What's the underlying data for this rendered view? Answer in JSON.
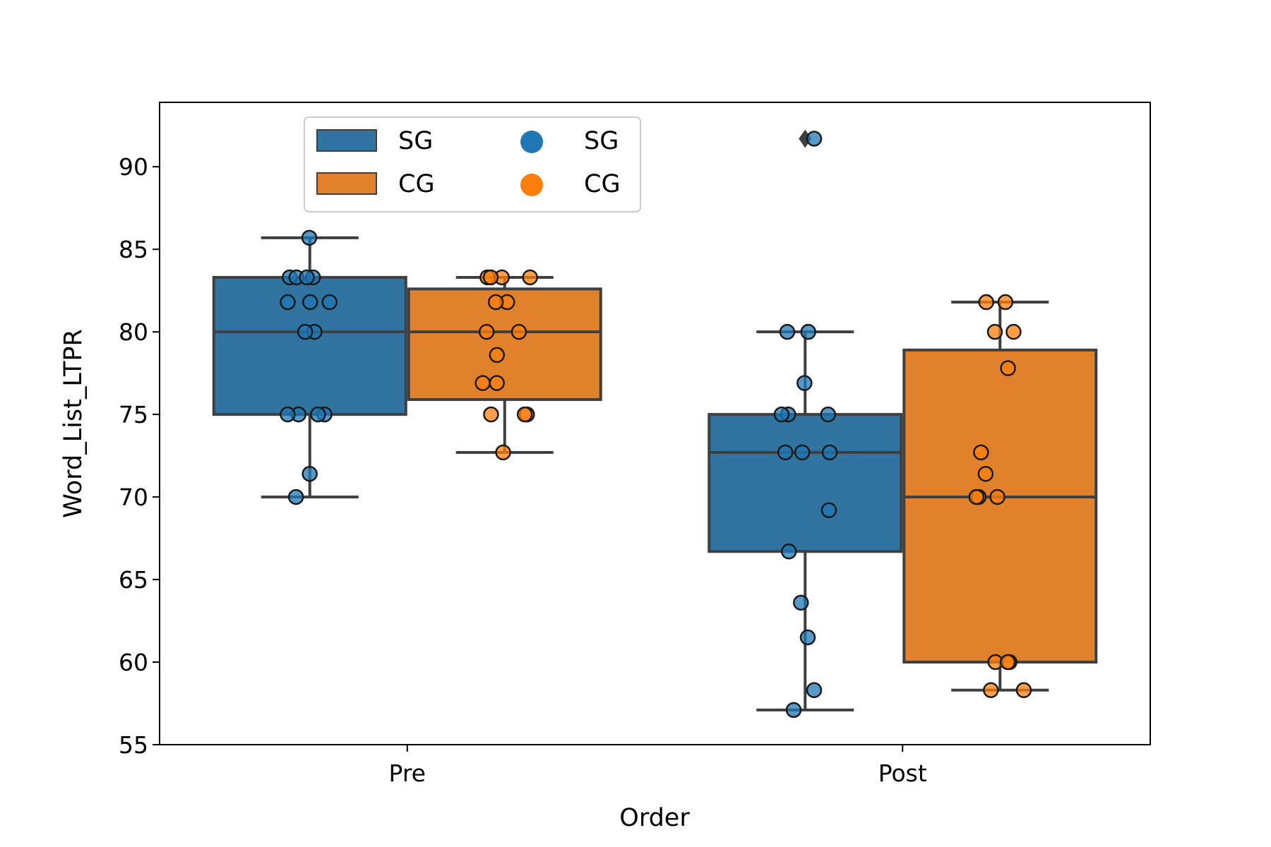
{
  "chart_data": {
    "type": "box",
    "xlabel": "Order",
    "ylabel": "Word_List_LTPR",
    "ylim": [
      55,
      93.9
    ],
    "yticks": [
      55,
      60,
      65,
      70,
      75,
      80,
      85,
      90
    ],
    "categories": [
      "Pre",
      "Post"
    ],
    "legend_placement": "top-left",
    "legend": {
      "box_entries": [
        {
          "label": "SG",
          "color": "#3274a1"
        },
        {
          "label": "CG",
          "color": "#e1812c"
        }
      ],
      "point_entries": [
        {
          "label": "SG",
          "color": "#1f77b4"
        },
        {
          "label": "CG",
          "color": "#ff7f0e"
        }
      ]
    },
    "series": [
      {
        "name": "SG",
        "box_color": "#3274a1",
        "point_color": "#1f77b4",
        "boxes": [
          {
            "category": "Pre",
            "whisker_low": 70,
            "q1": 75,
            "median": 80,
            "q3": 83.3,
            "whisker_high": 85.7,
            "outliers": []
          },
          {
            "category": "Post",
            "whisker_low": 57.1,
            "q1": 66.7,
            "median": 72.7,
            "q3": 75,
            "whisker_high": 80,
            "outliers": [
              91.7
            ]
          }
        ],
        "points": [
          {
            "category": "Pre",
            "values": [
              85.7,
              83.3,
              83.3,
              83.3,
              83.3,
              81.8,
              81.8,
              81.8,
              80,
              80,
              75,
              75,
              75,
              75,
              71.4,
              70
            ]
          },
          {
            "category": "Post",
            "values": [
              91.7,
              80,
              80,
              76.9,
              75,
              75,
              75,
              72.7,
              72.7,
              72.7,
              69.2,
              66.7,
              63.6,
              61.5,
              58.3,
              57.1
            ]
          }
        ]
      },
      {
        "name": "CG",
        "box_color": "#e1812c",
        "point_color": "#ff7f0e",
        "boxes": [
          {
            "category": "Pre",
            "whisker_low": 72.7,
            "q1": 75.9,
            "median": 80,
            "q3": 82.6,
            "whisker_high": 83.3,
            "outliers": []
          },
          {
            "category": "Post",
            "whisker_low": 58.3,
            "q1": 60,
            "median": 70,
            "q3": 78.9,
            "whisker_high": 81.8,
            "outliers": []
          }
        ],
        "points": [
          {
            "category": "Pre",
            "values": [
              83.3,
              83.3,
              83.3,
              83.3,
              81.8,
              81.8,
              80,
              80,
              78.6,
              76.9,
              76.9,
              75,
              75,
              75,
              72.7
            ]
          },
          {
            "category": "Post",
            "values": [
              81.8,
              81.8,
              80,
              80,
              77.8,
              72.7,
              71.4,
              70,
              70,
              70,
              60,
              60,
              60,
              58.3,
              58.3
            ]
          }
        ]
      }
    ]
  }
}
